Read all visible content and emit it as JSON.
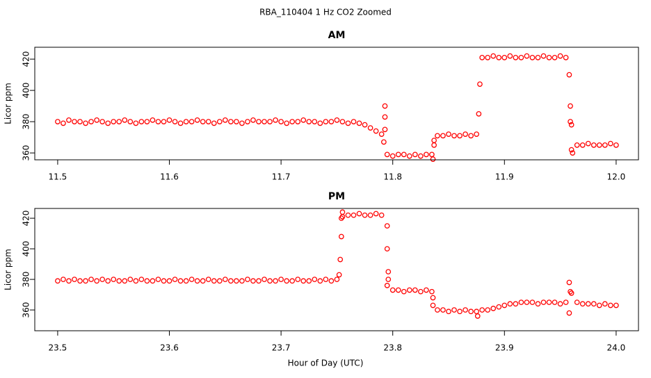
{
  "title": "RBA_110404  1 Hz CO2 Zoomed",
  "xlabel": "Hour of Day (UTC)",
  "chart_data": [
    {
      "type": "scatter",
      "title": "AM",
      "ylabel": "Licor ppm",
      "color": "#ff0000",
      "xlim": [
        11.4795,
        12.02
      ],
      "ylim": [
        355.6,
        427.6
      ],
      "xticks": [
        11.5,
        11.6,
        11.7,
        11.8,
        11.9,
        {
          "value": 12,
          "label": "12.0"
        }
      ],
      "yticks": [
        360,
        380,
        400,
        420
      ],
      "x": [
        11.5,
        11.505,
        11.51,
        11.515,
        11.52,
        11.525,
        11.53,
        11.535,
        11.54,
        11.545,
        11.55,
        11.555,
        11.56,
        11.565,
        11.57,
        11.575,
        11.58,
        11.585,
        11.59,
        11.595,
        11.6,
        11.605,
        11.61,
        11.615,
        11.62,
        11.625,
        11.63,
        11.635,
        11.64,
        11.645,
        11.65,
        11.655,
        11.66,
        11.665,
        11.67,
        11.675,
        11.68,
        11.685,
        11.69,
        11.695,
        11.7,
        11.705,
        11.71,
        11.715,
        11.72,
        11.725,
        11.73,
        11.735,
        11.74,
        11.745,
        11.75,
        11.755,
        11.76,
        11.765,
        11.77,
        11.775,
        11.78,
        11.785,
        11.79,
        11.795,
        11.8,
        11.805,
        11.81,
        11.815,
        11.82,
        11.825,
        11.83,
        11.835,
        11.84,
        11.845,
        11.85,
        11.855,
        11.86,
        11.865,
        11.87,
        11.875,
        11.88,
        11.885,
        11.89,
        11.895,
        11.9,
        11.905,
        11.91,
        11.915,
        11.92,
        11.925,
        11.93,
        11.935,
        11.94,
        11.945,
        11.95,
        11.955,
        11.96,
        11.965,
        11.97,
        11.975,
        11.98,
        11.985,
        11.99,
        11.995,
        12.0,
        11.793,
        11.793,
        11.793,
        11.792,
        11.837,
        11.837,
        11.836,
        11.877,
        11.878,
        11.958,
        11.959,
        11.959,
        11.96,
        11.961
      ],
      "values": [
        380,
        379,
        381,
        380,
        380,
        379,
        380,
        381,
        380,
        379,
        380,
        380,
        381,
        380,
        379,
        380,
        380,
        381,
        380,
        380,
        381,
        380,
        379,
        380,
        380,
        381,
        380,
        380,
        379,
        380,
        381,
        380,
        380,
        379,
        380,
        381,
        380,
        380,
        380,
        381,
        380,
        379,
        380,
        380,
        381,
        380,
        380,
        379,
        380,
        380,
        381,
        380,
        379,
        380,
        379,
        378,
        376,
        374,
        372,
        359,
        358,
        359,
        359,
        358,
        359,
        358,
        359,
        359,
        371,
        371,
        372,
        371,
        371,
        372,
        371,
        372,
        421,
        421,
        422,
        421,
        421,
        422,
        421,
        421,
        422,
        421,
        421,
        422,
        421,
        421,
        422,
        421,
        362,
        365,
        365,
        366,
        365,
        365,
        365,
        366,
        365,
        390,
        383,
        375,
        367,
        368,
        365,
        356,
        385,
        404,
        410,
        390,
        380,
        378,
        360
      ]
    },
    {
      "type": "scatter",
      "title": "PM",
      "ylabel": "Licor ppm",
      "color": "#ff0000",
      "xlim": [
        23.4795,
        24.02
      ],
      "ylim": [
        346.4,
        426.4
      ],
      "xticks": [
        23.5,
        23.6,
        23.7,
        23.8,
        23.9,
        {
          "value": 24,
          "label": "24.0"
        }
      ],
      "yticks": [
        360,
        380,
        400,
        420
      ],
      "x": [
        23.5,
        23.505,
        23.51,
        23.515,
        23.52,
        23.525,
        23.53,
        23.535,
        23.54,
        23.545,
        23.55,
        23.555,
        23.56,
        23.565,
        23.57,
        23.575,
        23.58,
        23.585,
        23.59,
        23.595,
        23.6,
        23.605,
        23.61,
        23.615,
        23.62,
        23.625,
        23.63,
        23.635,
        23.64,
        23.645,
        23.65,
        23.655,
        23.66,
        23.665,
        23.67,
        23.675,
        23.68,
        23.685,
        23.69,
        23.695,
        23.7,
        23.705,
        23.71,
        23.715,
        23.72,
        23.725,
        23.73,
        23.735,
        23.74,
        23.745,
        23.75,
        23.755,
        23.76,
        23.765,
        23.77,
        23.775,
        23.78,
        23.785,
        23.79,
        23.795,
        23.8,
        23.805,
        23.81,
        23.815,
        23.82,
        23.825,
        23.83,
        23.835,
        23.84,
        23.845,
        23.85,
        23.855,
        23.86,
        23.865,
        23.87,
        23.875,
        23.88,
        23.885,
        23.89,
        23.895,
        23.9,
        23.905,
        23.91,
        23.915,
        23.92,
        23.925,
        23.93,
        23.935,
        23.94,
        23.945,
        23.95,
        23.955,
        23.96,
        23.965,
        23.97,
        23.975,
        23.98,
        23.985,
        23.99,
        23.995,
        24.0,
        23.752,
        23.753,
        23.754,
        23.754,
        23.755,
        23.795,
        23.795,
        23.796,
        23.796,
        23.836,
        23.836,
        23.876,
        23.958,
        23.958,
        23.959
      ],
      "values": [
        379,
        380,
        379,
        380,
        379,
        379,
        380,
        379,
        380,
        379,
        380,
        379,
        379,
        380,
        379,
        380,
        379,
        379,
        380,
        379,
        379,
        380,
        379,
        379,
        380,
        379,
        379,
        380,
        379,
        379,
        380,
        379,
        379,
        379,
        380,
        379,
        379,
        380,
        379,
        379,
        380,
        379,
        379,
        380,
        379,
        379,
        380,
        379,
        380,
        379,
        380,
        421,
        422,
        422,
        423,
        422,
        422,
        423,
        422,
        376,
        373,
        373,
        372,
        373,
        373,
        372,
        373,
        372,
        360,
        360,
        359,
        360,
        359,
        360,
        359,
        359,
        360,
        360,
        361,
        362,
        363,
        364,
        364,
        365,
        365,
        365,
        364,
        365,
        365,
        365,
        364,
        365,
        371,
        365,
        364,
        364,
        364,
        363,
        364,
        363,
        363,
        383,
        393,
        408,
        420,
        424,
        415,
        400,
        385,
        380,
        368,
        363,
        356,
        358,
        378,
        372
      ]
    }
  ]
}
